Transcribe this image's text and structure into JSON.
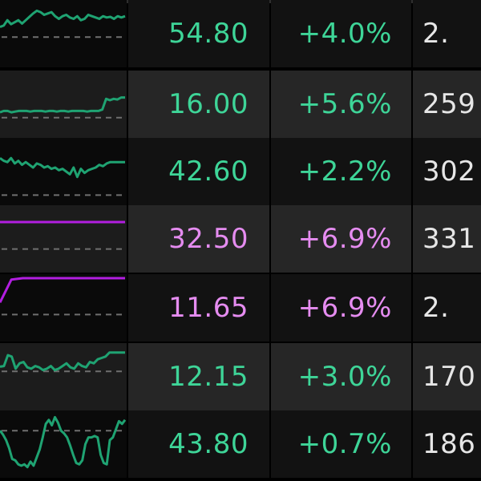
{
  "colors": {
    "up_green": "#3ed598",
    "limit_up_violet": "#e58cf0",
    "spark_green": "#1fa372",
    "spark_violet": "#b21ee0",
    "baseline_dash": "#6f6f6f",
    "volume_text": "#e6e6e6"
  },
  "rows": [
    {
      "price": "54.80",
      "change": "+4.0%",
      "volume": "2.",
      "color": "#3ed598",
      "spark": {
        "color": "#1fa372",
        "baseline": 0.55,
        "points": [
          0.4,
          0.38,
          0.3,
          0.36,
          0.33,
          0.3,
          0.35,
          0.3,
          0.25,
          0.2,
          0.16,
          0.18,
          0.22,
          0.2,
          0.18,
          0.24,
          0.28,
          0.24,
          0.22,
          0.26,
          0.28,
          0.24,
          0.3,
          0.28,
          0.22,
          0.24,
          0.26,
          0.28,
          0.24,
          0.26,
          0.25,
          0.28,
          0.24,
          0.26,
          0.24
        ]
      }
    },
    {
      "price": "16.00",
      "change": "+5.6%",
      "volume": "259",
      "color": "#3ed598",
      "spark": {
        "color": "#1fa372",
        "baseline": 0.7,
        "points": [
          0.62,
          0.6,
          0.6,
          0.62,
          0.61,
          0.6,
          0.6,
          0.6,
          0.61,
          0.6,
          0.6,
          0.6,
          0.61,
          0.6,
          0.6,
          0.61,
          0.6,
          0.6,
          0.61,
          0.6,
          0.6,
          0.6,
          0.6,
          0.61,
          0.6,
          0.6,
          0.6,
          0.58,
          0.42,
          0.44,
          0.42,
          0.43,
          0.4,
          0.4
        ]
      }
    },
    {
      "price": "42.60",
      "change": "+2.2%",
      "volume": "302",
      "color": "#3ed598",
      "spark": {
        "color": "#1fa372",
        "baseline": 0.85,
        "points": [
          0.3,
          0.34,
          0.36,
          0.3,
          0.38,
          0.34,
          0.4,
          0.36,
          0.4,
          0.44,
          0.38,
          0.4,
          0.44,
          0.42,
          0.46,
          0.44,
          0.48,
          0.46,
          0.5,
          0.54,
          0.44,
          0.58,
          0.46,
          0.52,
          0.48,
          0.46,
          0.44,
          0.4,
          0.42,
          0.38,
          0.36,
          0.36,
          0.36,
          0.36,
          0.36
        ]
      }
    },
    {
      "price": "32.50",
      "change": "+6.9%",
      "volume": "331",
      "color": "#e58cf0",
      "spark": {
        "color": "#b21ee0",
        "baseline": 0.65,
        "points": [
          0.25,
          0.25,
          0.25,
          0.25,
          0.25,
          0.25,
          0.25,
          0.25,
          0.25,
          0.25
        ]
      }
    },
    {
      "price": "11.65",
      "change": "+6.9%",
      "volume": "2.",
      "color": "#e58cf0",
      "spark": {
        "color": "#b21ee0",
        "baseline": 0.6,
        "points": [
          0.42,
          0.08,
          0.06,
          0.06,
          0.06,
          0.06,
          0.06,
          0.06,
          0.06,
          0.06,
          0.06,
          0.06
        ]
      }
    },
    {
      "price": "12.15",
      "change": "+3.0%",
      "volume": "170",
      "color": "#3ed598",
      "spark": {
        "color": "#1fa372",
        "baseline": 0.42,
        "points": [
          0.35,
          0.34,
          0.18,
          0.2,
          0.38,
          0.3,
          0.28,
          0.36,
          0.38,
          0.34,
          0.36,
          0.4,
          0.38,
          0.34,
          0.4,
          0.38,
          0.34,
          0.3,
          0.36,
          0.38,
          0.3,
          0.34,
          0.36,
          0.28,
          0.3,
          0.24,
          0.22,
          0.2,
          0.14,
          0.14,
          0.14,
          0.14,
          0.14
        ]
      }
    },
    {
      "price": "43.80",
      "change": "+0.7%",
      "volume": "186",
      "color": "#3ed598",
      "spark": {
        "color": "#1fa372",
        "baseline": 0.3,
        "points": [
          0.3,
          0.36,
          0.44,
          0.56,
          0.72,
          0.74,
          0.8,
          0.82,
          0.8,
          0.84,
          0.76,
          0.82,
          0.7,
          0.58,
          0.4,
          0.2,
          0.14,
          0.22,
          0.1,
          0.18,
          0.3,
          0.34,
          0.4,
          0.52,
          0.66,
          0.78,
          0.8,
          0.74,
          0.5,
          0.4,
          0.4,
          0.38,
          0.4,
          0.66,
          0.78,
          0.8,
          0.44,
          0.4,
          0.28,
          0.16,
          0.2,
          0.14
        ]
      }
    }
  ]
}
